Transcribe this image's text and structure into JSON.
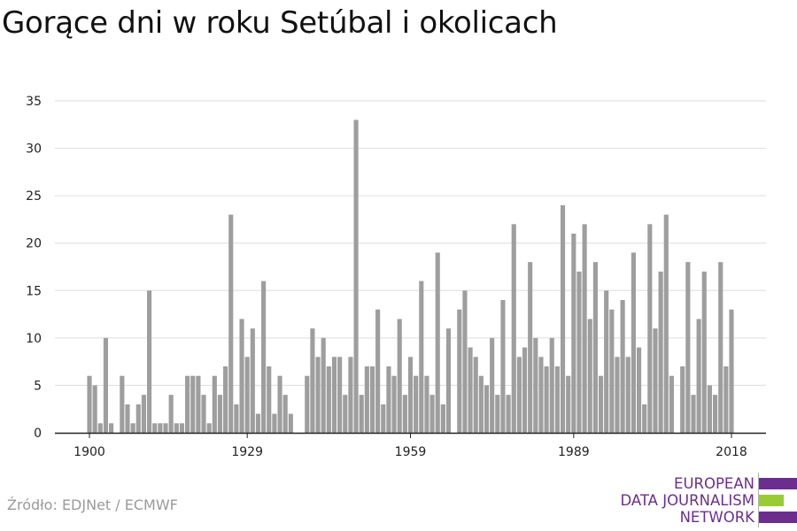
{
  "title": "Gorące dni w roku Setúbal i okolicach",
  "source": "Źródło: EDJNet / ECMWF",
  "logo": {
    "line1": "EUROPEAN",
    "line2": "DATA JOURNALISM",
    "line3": "NETWORK",
    "purple": "#6b2e8e",
    "green": "#99cc33"
  },
  "chart_data": {
    "type": "bar",
    "title": "Gorące dni w roku Setúbal i okolicach",
    "xlabel": "",
    "ylabel": "",
    "x_tick_labels": [
      "1900",
      "1929",
      "1959",
      "1989",
      "2018"
    ],
    "y_ticks": [
      0,
      5,
      10,
      15,
      20,
      25,
      30,
      35
    ],
    "ylim": [
      0,
      35
    ],
    "bar_color": "#9e9e9e",
    "grid": true,
    "years": [
      1900,
      1901,
      1902,
      1903,
      1904,
      1905,
      1906,
      1907,
      1908,
      1909,
      1910,
      1911,
      1912,
      1913,
      1914,
      1915,
      1916,
      1917,
      1918,
      1919,
      1920,
      1921,
      1922,
      1923,
      1924,
      1925,
      1926,
      1927,
      1928,
      1929,
      1930,
      1931,
      1932,
      1933,
      1934,
      1935,
      1936,
      1937,
      1938,
      1939,
      1940,
      1941,
      1942,
      1943,
      1944,
      1945,
      1946,
      1947,
      1948,
      1949,
      1950,
      1951,
      1952,
      1953,
      1954,
      1955,
      1956,
      1957,
      1958,
      1959,
      1960,
      1961,
      1962,
      1963,
      1964,
      1965,
      1966,
      1967,
      1968,
      1969,
      1970,
      1971,
      1972,
      1973,
      1974,
      1975,
      1976,
      1977,
      1978,
      1979,
      1980,
      1981,
      1982,
      1983,
      1984,
      1985,
      1986,
      1987,
      1988,
      1989,
      1990,
      1991,
      1992,
      1993,
      1994,
      1995,
      1996,
      1997,
      1998,
      1999,
      2000,
      2001,
      2002,
      2003,
      2004,
      2005,
      2006,
      2007,
      2008,
      2009,
      2010,
      2011,
      2012,
      2013,
      2014,
      2015,
      2016,
      2017,
      2018
    ],
    "values": [
      6,
      5,
      1,
      10,
      1,
      0,
      6,
      3,
      1,
      3,
      4,
      15,
      1,
      1,
      1,
      4,
      1,
      1,
      6,
      6,
      6,
      4,
      1,
      6,
      4,
      7,
      23,
      3,
      12,
      8,
      11,
      2,
      16,
      7,
      2,
      6,
      4,
      2,
      0,
      0,
      6,
      11,
      8,
      10,
      7,
      8,
      8,
      4,
      8,
      33,
      4,
      7,
      7,
      13,
      3,
      7,
      6,
      12,
      4,
      8,
      6,
      16,
      6,
      4,
      19,
      3,
      11,
      0,
      13,
      15,
      9,
      8,
      6,
      5,
      10,
      4,
      14,
      4,
      22,
      8,
      9,
      18,
      10,
      8,
      7,
      10,
      7,
      24,
      6,
      21,
      17,
      22,
      12,
      18,
      6,
      15,
      13,
      8,
      14,
      8,
      19,
      9,
      3,
      22,
      11,
      17,
      23,
      6,
      0,
      7,
      18,
      4,
      12,
      17,
      5,
      4,
      18,
      7,
      13
    ]
  }
}
